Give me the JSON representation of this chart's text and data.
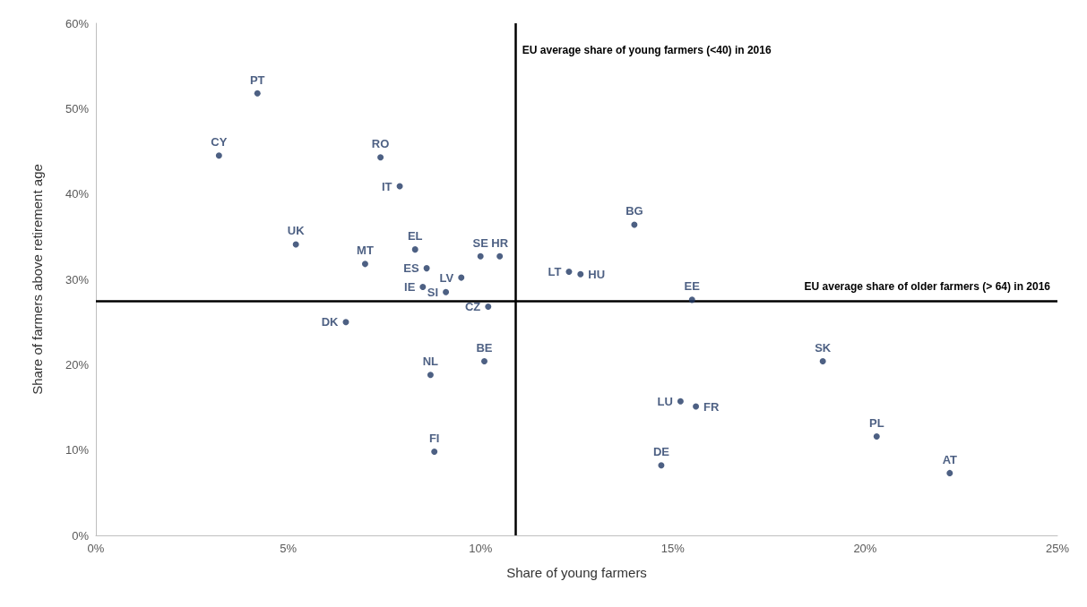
{
  "chart_data": {
    "type": "scatter",
    "xlabel": "Share of young farmers",
    "ylabel": "Share of farmers above retirement age",
    "xlim": [
      0,
      25
    ],
    "xticks": [
      {
        "value": 0,
        "label": "0%"
      },
      {
        "value": 5,
        "label": "5%"
      },
      {
        "value": 10,
        "label": "10%"
      },
      {
        "value": 15,
        "label": "15%"
      },
      {
        "value": 20,
        "label": "20%"
      },
      {
        "value": 25,
        "label": "25%"
      }
    ],
    "ylim": [
      0,
      60
    ],
    "yticks": [
      {
        "value": 0,
        "label": "0%"
      },
      {
        "value": 10,
        "label": "10%"
      },
      {
        "value": 20,
        "label": "20%"
      },
      {
        "value": 30,
        "label": "30%"
      },
      {
        "value": 40,
        "label": "40%"
      },
      {
        "value": 50,
        "label": "50%"
      },
      {
        "value": 60,
        "label": "60%"
      }
    ],
    "grid": false,
    "legend": false,
    "marker": "circle",
    "ref_lines": [
      {
        "axis": "x",
        "value": 10.9,
        "label": "EU average share of young farmers (<40) in 2016",
        "color": "#000000"
      },
      {
        "axis": "y",
        "value": 27.5,
        "label": "EU average share of older farmers (> 64) in 2016",
        "color": "#000000"
      }
    ],
    "series": [
      {
        "name": "PT",
        "color": "#203864",
        "x": [
          4.2
        ],
        "values": [
          51.8
        ]
      },
      {
        "name": "CY",
        "color": "#203864",
        "x": [
          3.2
        ],
        "values": [
          44.5
        ]
      },
      {
        "name": "RO",
        "color": "#203864",
        "x": [
          7.4
        ],
        "values": [
          44.3
        ]
      },
      {
        "name": "IT",
        "color": "#203864",
        "x": [
          7.9
        ],
        "values": [
          40.9
        ]
      },
      {
        "name": "UK",
        "color": "#203864",
        "x": [
          5.2
        ],
        "values": [
          34.1
        ]
      },
      {
        "name": "MT",
        "color": "#203864",
        "x": [
          7.0
        ],
        "values": [
          31.8
        ]
      },
      {
        "name": "EL",
        "color": "#203864",
        "x": [
          8.3
        ],
        "values": [
          33.5
        ]
      },
      {
        "name": "ES",
        "color": "#203864",
        "x": [
          8.6
        ],
        "values": [
          31.3
        ]
      },
      {
        "name": "IE",
        "color": "#203864",
        "x": [
          8.5
        ],
        "values": [
          29.1
        ]
      },
      {
        "name": "SI",
        "color": "#203864",
        "x": [
          9.1
        ],
        "values": [
          28.5
        ]
      },
      {
        "name": "LV",
        "color": "#203864",
        "x": [
          9.5
        ],
        "values": [
          30.2
        ]
      },
      {
        "name": "SE",
        "color": "#203864",
        "x": [
          10.0
        ],
        "values": [
          32.7
        ]
      },
      {
        "name": "HR",
        "color": "#203864",
        "x": [
          10.5
        ],
        "values": [
          32.7
        ]
      },
      {
        "name": "CZ",
        "color": "#203864",
        "x": [
          10.2
        ],
        "values": [
          26.8
        ]
      },
      {
        "name": "DK",
        "color": "#203864",
        "x": [
          6.5
        ],
        "values": [
          25.0
        ]
      },
      {
        "name": "BE",
        "color": "#203864",
        "x": [
          10.1
        ],
        "values": [
          20.4
        ]
      },
      {
        "name": "NL",
        "color": "#203864",
        "x": [
          8.7
        ],
        "values": [
          18.8
        ]
      },
      {
        "name": "FI",
        "color": "#203864",
        "x": [
          8.8
        ],
        "values": [
          9.8
        ]
      },
      {
        "name": "LT",
        "color": "#203864",
        "x": [
          12.3
        ],
        "values": [
          30.9
        ]
      },
      {
        "name": "HU",
        "color": "#203864",
        "x": [
          12.6
        ],
        "values": [
          30.6
        ]
      },
      {
        "name": "BG",
        "color": "#203864",
        "x": [
          14.0
        ],
        "values": [
          36.4
        ]
      },
      {
        "name": "EE",
        "color": "#203864",
        "x": [
          15.5
        ],
        "values": [
          27.6
        ]
      },
      {
        "name": "SK",
        "color": "#203864",
        "x": [
          18.9
        ],
        "values": [
          20.4
        ]
      },
      {
        "name": "LU",
        "color": "#203864",
        "x": [
          15.2
        ],
        "values": [
          15.7
        ]
      },
      {
        "name": "FR",
        "color": "#203864",
        "x": [
          15.6
        ],
        "values": [
          15.1
        ]
      },
      {
        "name": "DE",
        "color": "#203864",
        "x": [
          14.7
        ],
        "values": [
          8.2
        ]
      },
      {
        "name": "PL",
        "color": "#203864",
        "x": [
          20.3
        ],
        "values": [
          11.6
        ]
      },
      {
        "name": "AT",
        "color": "#203864",
        "x": [
          22.2
        ],
        "values": [
          7.3
        ]
      }
    ]
  }
}
